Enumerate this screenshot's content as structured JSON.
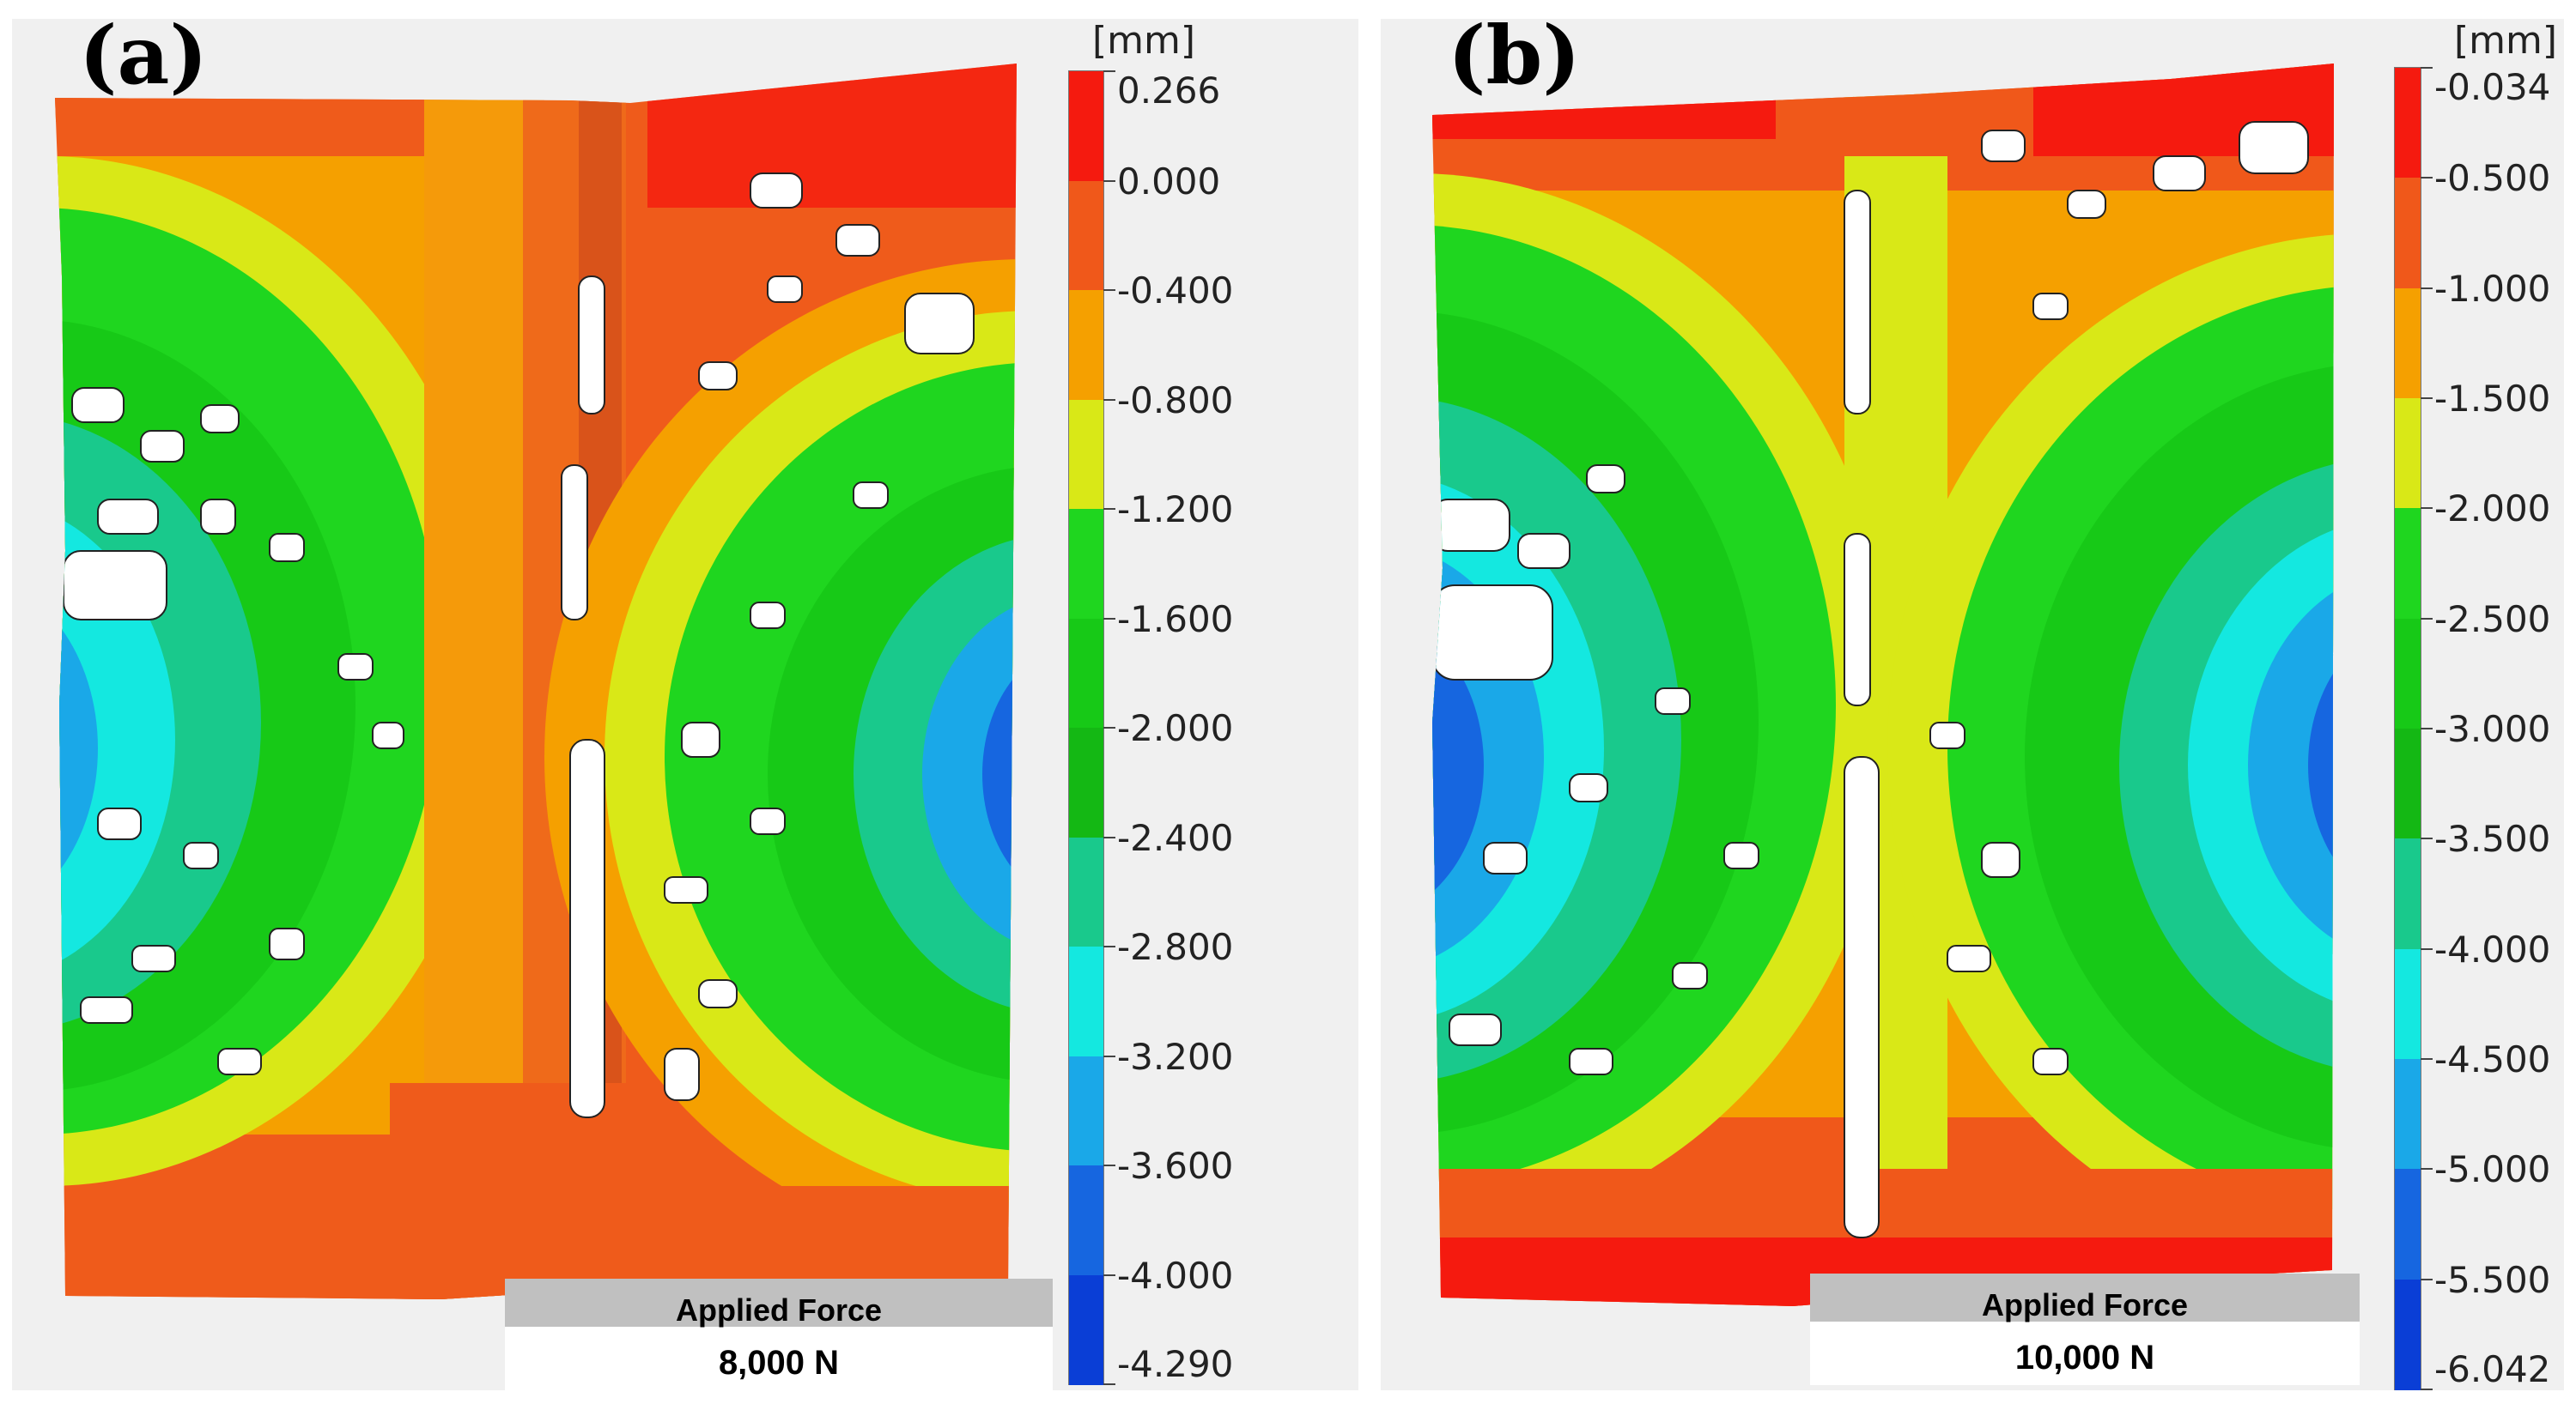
{
  "panels": [
    {
      "label": "(a)",
      "unit": "[mm]",
      "colorbar_ticks": [
        "0.266",
        "0.000",
        "-0.400",
        "-0.800",
        "-1.200",
        "-1.600",
        "-2.000",
        "-2.400",
        "-2.800",
        "-3.200",
        "-3.600",
        "-4.000",
        "-4.290"
      ],
      "force_label": "Applied Force",
      "force_value": "8,000 N"
    },
    {
      "label": "(b)",
      "unit": "[mm]",
      "colorbar_ticks": [
        "-0.034",
        "-0.500",
        "-1.000",
        "-1.500",
        "-2.000",
        "-2.500",
        "-3.000",
        "-3.500",
        "-4.000",
        "-4.500",
        "-5.000",
        "-5.500",
        "-6.042"
      ],
      "force_label": "Applied Force",
      "force_value": "10,000 N"
    }
  ],
  "colorbar_colors": [
    "#f51a0f",
    "#f0581a",
    "#f5a000",
    "#d9e817",
    "#1fd61f",
    "#17c917",
    "#14b814",
    "#19c98c",
    "#14e8e0",
    "#1aa8e8",
    "#1666e0",
    "#0a3ed6",
    "#0a1ee0"
  ]
}
